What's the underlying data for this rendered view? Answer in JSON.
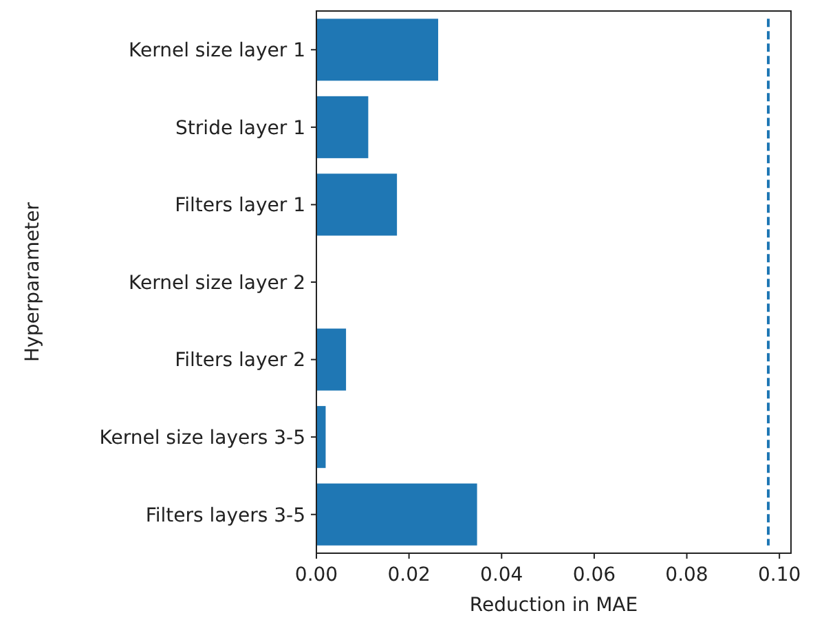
{
  "chart_data": {
    "type": "bar",
    "orientation": "horizontal",
    "xlabel": "Reduction in MAE",
    "ylabel": "Hyperparameter",
    "categories": [
      "Kernel size layer 1",
      "Stride layer 1",
      "Filters layer 1",
      "Kernel size layer 2",
      "Filters layer 2",
      "Kernel size layers 3-5",
      "Filters layers 3-5"
    ],
    "values": [
      0.0263,
      0.0112,
      0.0174,
      0,
      0.0064,
      0.002,
      0.0347
    ],
    "color": "#1f77b4",
    "xlim": [
      0,
      0.1025
    ],
    "xticks": [
      {
        "value": 0,
        "label": "0.00"
      },
      {
        "value": 0.02,
        "label": "0.02"
      },
      {
        "value": 0.04,
        "label": "0.04"
      },
      {
        "value": 0.06,
        "label": "0.06"
      },
      {
        "value": 0.08,
        "label": "0.08"
      },
      {
        "value": 0.1,
        "label": "0.10"
      }
    ],
    "ref_lines": [
      {
        "axis": "x",
        "value": 0.0976,
        "color": "#1f77b4",
        "line_style": "dashed"
      }
    ]
  }
}
